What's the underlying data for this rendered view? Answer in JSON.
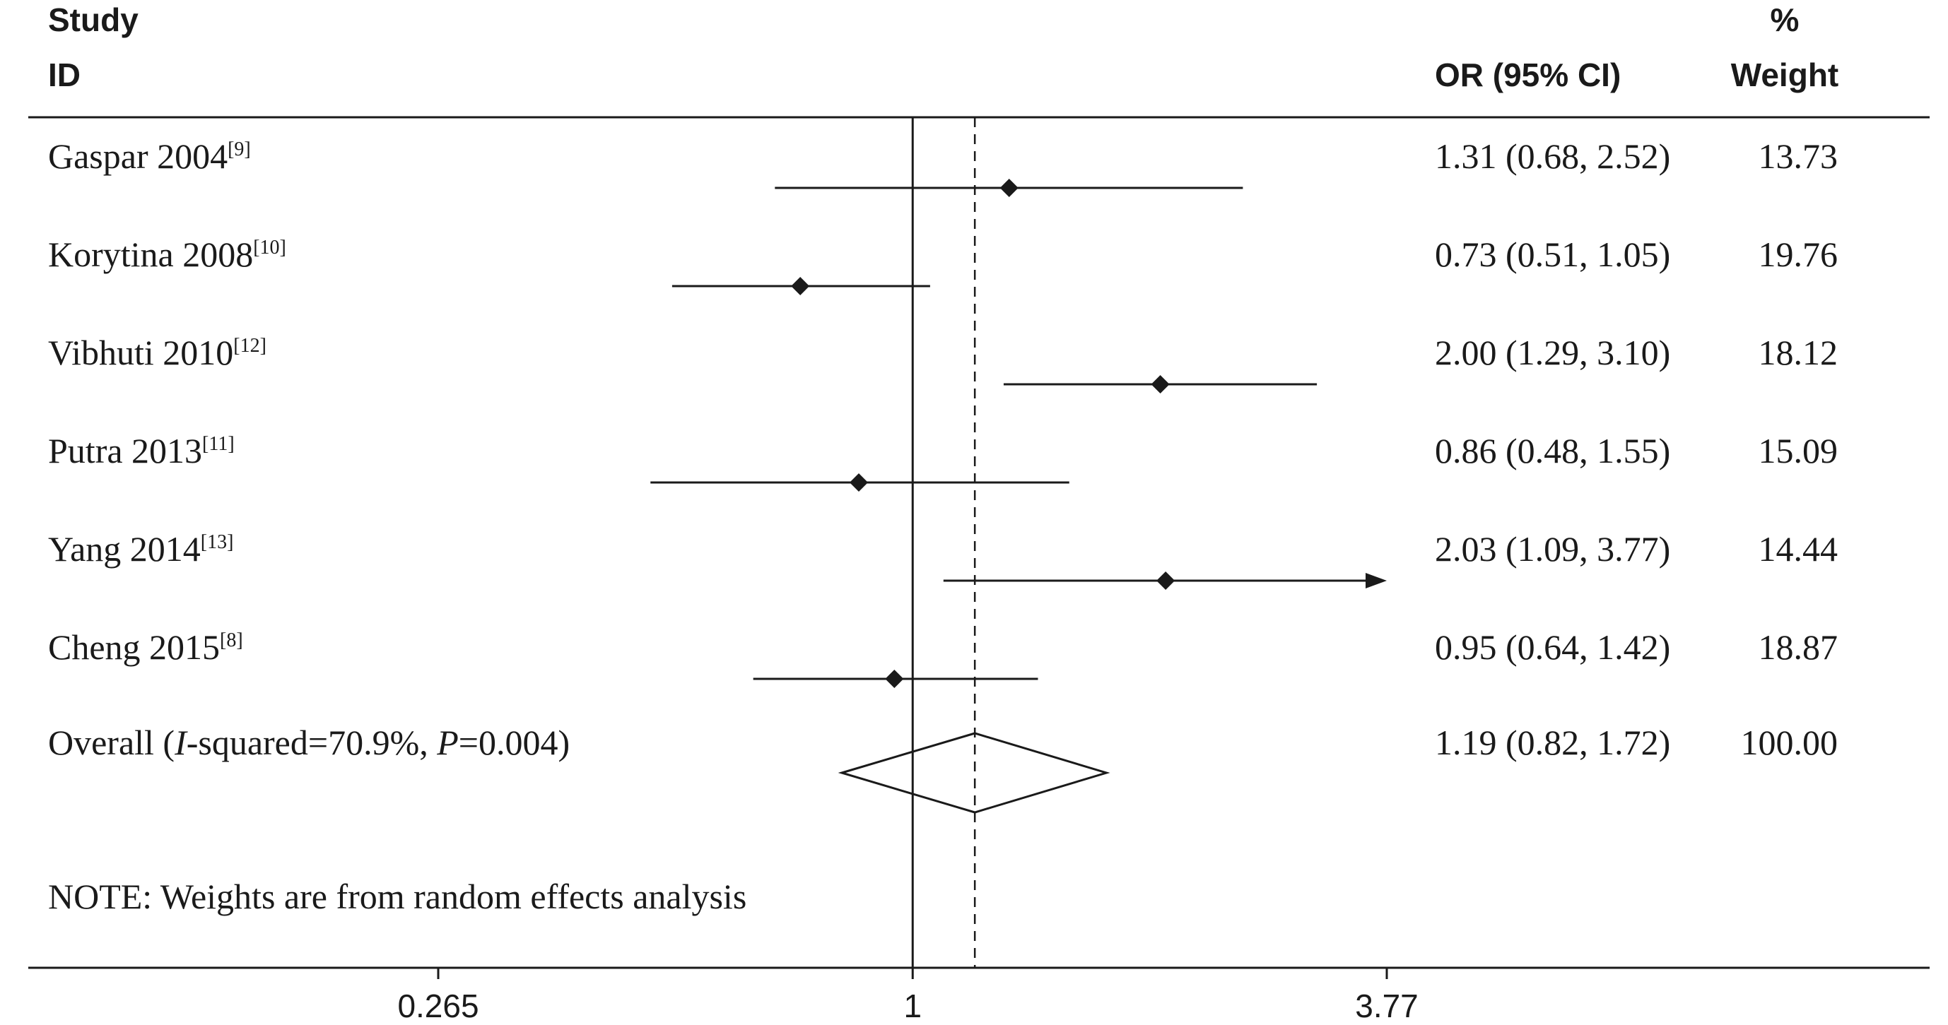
{
  "header": {
    "study_line1": "Study",
    "study_line2": "ID",
    "or_label": "OR (95% CI)",
    "weight_line1": "%",
    "weight_line2": "Weight"
  },
  "chart_data": {
    "type": "forest",
    "xscale": "log",
    "xticks": [
      "0.265",
      "1",
      "3.77"
    ],
    "xlim": [
      0.265,
      3.77
    ],
    "null_value": 1,
    "overall_line": 1.19,
    "studies": [
      {
        "name": "Gaspar 2004",
        "ref": "[9]",
        "or": 1.31,
        "lo": 0.68,
        "hi": 2.52,
        "ci_text": "1.31 (0.68, 2.52)",
        "weight": "13.73"
      },
      {
        "name": "Korytina 2008",
        "ref": "[10]",
        "or": 0.73,
        "lo": 0.51,
        "hi": 1.05,
        "ci_text": "0.73 (0.51, 1.05)",
        "weight": "19.76"
      },
      {
        "name": "Vibhuti 2010",
        "ref": "[12]",
        "or": 2.0,
        "lo": 1.29,
        "hi": 3.1,
        "ci_text": "2.00 (1.29, 3.10)",
        "weight": "18.12"
      },
      {
        "name": "Putra 2013",
        "ref": "[11]",
        "or": 0.86,
        "lo": 0.48,
        "hi": 1.55,
        "ci_text": "0.86 (0.48, 1.55)",
        "weight": "15.09"
      },
      {
        "name": "Yang 2014",
        "ref": "[13]",
        "or": 2.03,
        "lo": 1.09,
        "hi": 3.77,
        "ci_text": "2.03 (1.09, 3.77)",
        "weight": "14.44",
        "arrow": true
      },
      {
        "name": "Cheng 2015",
        "ref": "[8]",
        "or": 0.95,
        "lo": 0.64,
        "hi": 1.42,
        "ci_text": "0.95 (0.64, 1.42)",
        "weight": "18.87"
      }
    ],
    "overall": {
      "label_prefix": "Overall  (",
      "label_i": "I",
      "label_mid": "-squared=70.9%, ",
      "label_p": "P",
      "label_suffix": "=0.004)",
      "or": 1.19,
      "lo": 0.82,
      "hi": 1.72,
      "ci_text": "1.19 (0.82, 1.72)",
      "weight": "100.00"
    },
    "note": "NOTE: Weights are from random effects analysis"
  }
}
